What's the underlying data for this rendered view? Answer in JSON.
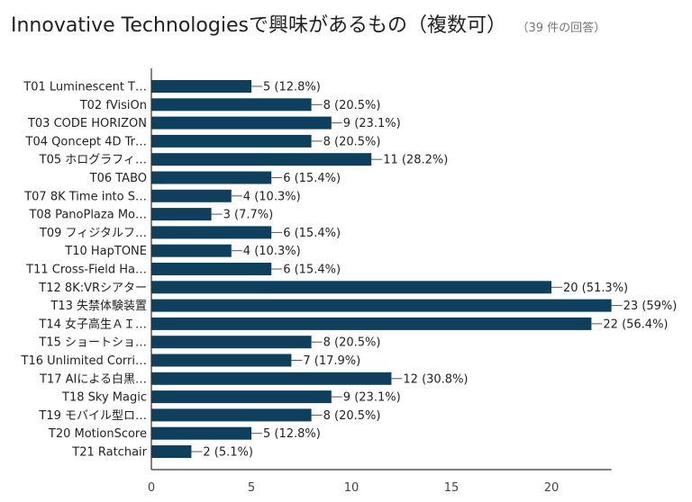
{
  "title": "Innovative Technologiesで興味があるもの（複数可）",
  "subtitle": "（39 件の回答）",
  "colors": {
    "bar": "#0e3f5c",
    "axis": "#333333",
    "connector": "#555555"
  },
  "chart_data": {
    "type": "bar",
    "orientation": "horizontal",
    "categories": [
      "T01 Luminescent T…",
      "T02 fVisiOn",
      "T03 CODE HORIZON",
      "T04 Qoncept 4D Tr…",
      "T05 ホログラフィ…",
      "T06 TABO",
      "T07 8K Time into S…",
      "T08 PanoPlaza Mo…",
      "T09 フィジタルフ…",
      "T10 HapTONE",
      "T11 Cross-Field Ha…",
      "T12 8K:VRシアター",
      "T13 失禁体験装置",
      "T14 女子高生ＡＩ…",
      "T15 ショートショ…",
      "T16 Unlimited Corri…",
      "T17 AIによる白黒…",
      "T18 Sky Magic",
      "T19 モバイル型ロ…",
      "T20 MotionScore",
      "T21 Ratchair"
    ],
    "values": [
      5,
      8,
      9,
      8,
      11,
      6,
      4,
      3,
      6,
      4,
      6,
      20,
      23,
      22,
      8,
      7,
      12,
      9,
      8,
      5,
      2
    ],
    "value_labels": [
      "5 (12.8%)",
      "8 (20.5%)",
      "9 (23.1%)",
      "8 (20.5%)",
      "11 (28.2%)",
      "6 (15.4%)",
      "4 (10.3%)",
      "3 (7.7%)",
      "6 (15.4%)",
      "4 (10.3%)",
      "6 (15.4%)",
      "20 (51.3%)",
      "23 (59%)",
      "22 (56.4%)",
      "8 (20.5%)",
      "7 (17.9%)",
      "12 (30.8%)",
      "9 (23.1%)",
      "8 (20.5%)",
      "5 (12.8%)",
      "2 (5.1%)"
    ],
    "x_ticks": [
      0,
      5,
      10,
      15,
      20
    ],
    "xlim": [
      0,
      23
    ],
    "grid": false,
    "legend": "none"
  }
}
